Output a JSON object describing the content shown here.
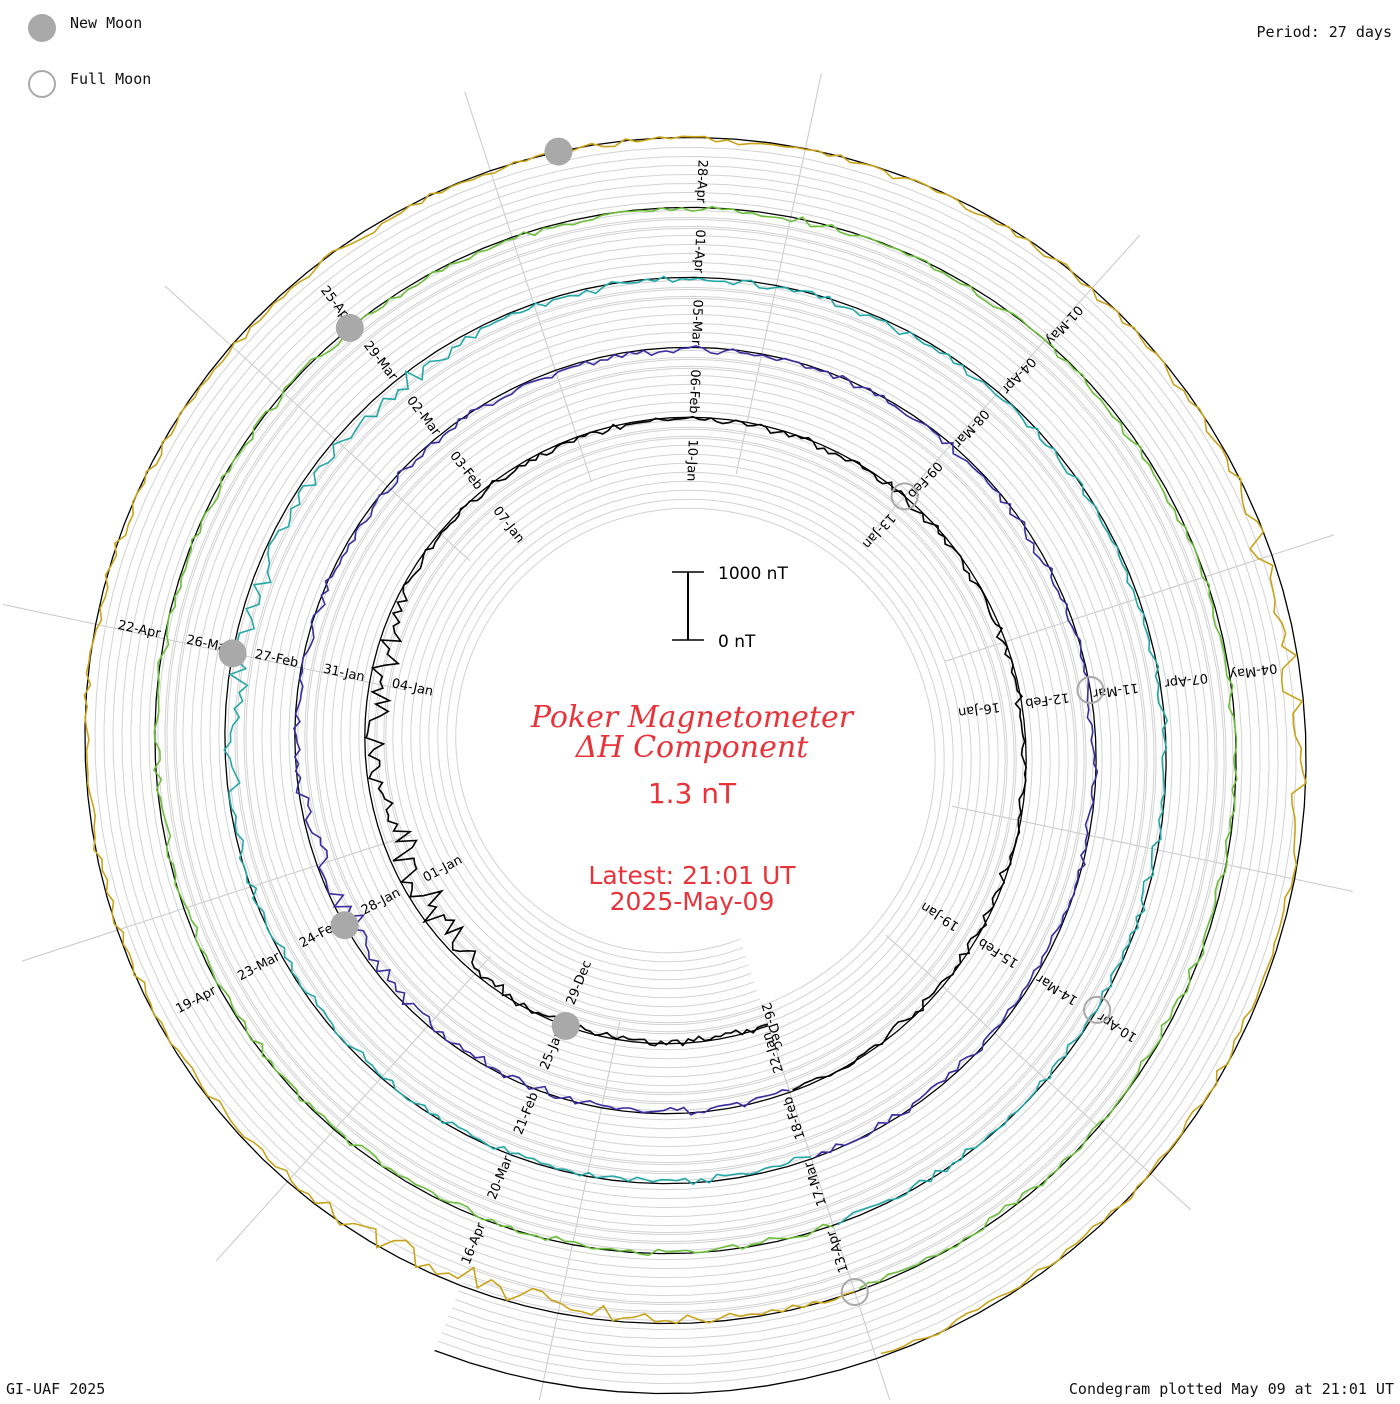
{
  "legend": {
    "new_moon": "New Moon",
    "full_moon": "Full Moon"
  },
  "period_label": "Period: 27 days",
  "footer_left": "GI-UAF 2025",
  "footer_right": "Condegram plotted May 09 at 21:01 UT",
  "chart_data": {
    "type": "line",
    "subtype": "condegram-spiral",
    "title": "Poker Magnetometer",
    "subtitle": "ΔH Component",
    "value_text": "1.3 nT",
    "latest_time": "Latest: 21:01 UT",
    "latest_date": "2025-May-09",
    "scale_bar": {
      "top_label": "1000 nT",
      "bottom_label": "0 nT"
    },
    "period_days": 27,
    "turns": [
      {
        "index": 0,
        "color": "#000000",
        "dates": [
          "26-Dec",
          "29-Dec",
          "01-Jan",
          "04-Jan",
          "07-Jan",
          "10-Jan",
          "13-Jan",
          "16-Jan",
          "19-Jan"
        ]
      },
      {
        "index": 1,
        "color": "#3a2fa0",
        "dates": [
          "22-Jan",
          "25-Jan",
          "28-Jan",
          "31-Jan",
          "03-Feb",
          "06-Feb",
          "09-Feb",
          "12-Feb",
          "15-Feb"
        ]
      },
      {
        "index": 2,
        "color": "#23a8a8",
        "dates": [
          "18-Feb",
          "21-Feb",
          "24-Feb",
          "27-Feb",
          "02-Mar",
          "05-Mar",
          "08-Mar",
          "11-Mar",
          "14-Mar"
        ]
      },
      {
        "index": 3,
        "color": "#6cbf3a",
        "dates": [
          "17-Mar",
          "20-Mar",
          "23-Mar",
          "26-Mar",
          "29-Mar",
          "01-Apr",
          "04-Apr",
          "07-Apr",
          "10-Apr"
        ]
      },
      {
        "index": 4,
        "color": "#c9a41a",
        "dates": [
          "13-Apr",
          "16-Apr",
          "19-Apr",
          "22-Apr",
          "25-Apr",
          "28-Apr",
          "01-May",
          "04-May"
        ]
      }
    ],
    "new_moons": [
      "29-Dec",
      "28-Jan",
      "27-Feb",
      "29-Mar",
      "27-Apr"
    ],
    "full_moons": [
      "13-Jan",
      "12-Feb",
      "14-Mar",
      "13-Apr"
    ],
    "activity": [
      {
        "date": "01-Jan",
        "level": 0.85
      },
      {
        "date": "04-Jan",
        "level": 0.45
      },
      {
        "date": "28-Jan",
        "level": 0.3
      },
      {
        "date": "27-Feb",
        "level": 0.35
      },
      {
        "date": "02-Mar",
        "level": 0.3
      },
      {
        "date": "16-Apr",
        "level": 0.4
      },
      {
        "date": "04-May",
        "level": 0.45
      }
    ],
    "grid": true
  }
}
